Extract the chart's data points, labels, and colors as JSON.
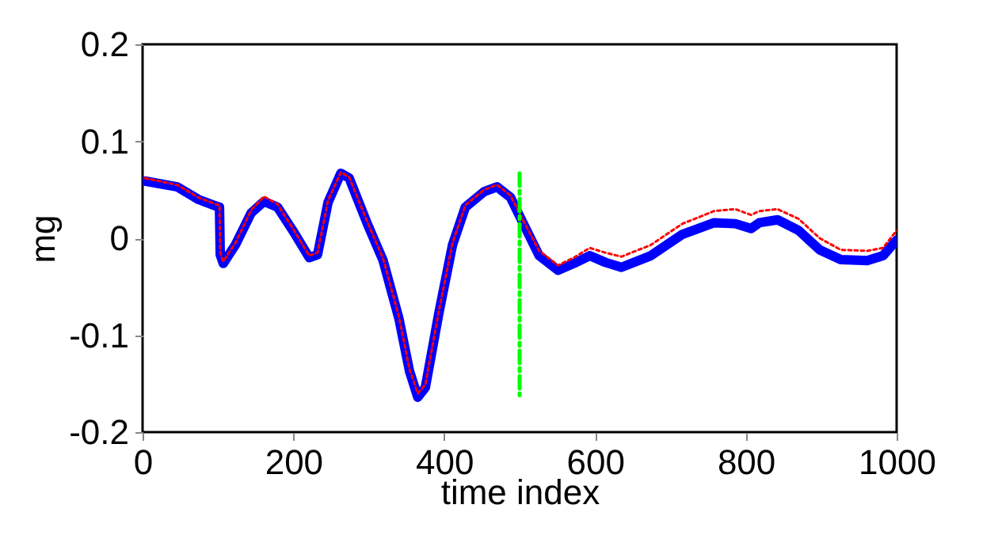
{
  "chart_data": {
    "type": "line",
    "xlabel": "time index",
    "ylabel": "mg",
    "xlim": [
      0,
      1000
    ],
    "xticks": [
      0,
      200,
      400,
      600,
      800,
      1000
    ],
    "ylim": [
      -0.2,
      0.2
    ],
    "yticks": [
      -0.2,
      -0.1,
      0,
      0.1,
      0.2
    ],
    "grid": false,
    "series": [
      {
        "color": "#0000ff",
        "line_style": "solid",
        "x": [
          3,
          46,
          74,
          98,
          102,
          103,
          107,
          123,
          144,
          161,
          179,
          200,
          221,
          232,
          246,
          263,
          274,
          298,
          319,
          340,
          354,
          365,
          375,
          393,
          411,
          428,
          453,
          470,
          488,
          505,
          526,
          551,
          572,
          593,
          614,
          635,
          674,
          716,
          758,
          786,
          807,
          818,
          842,
          870,
          898,
          926,
          961,
          982,
          1000
        ],
        "values": [
          0.059,
          0.053,
          0.04,
          0.033,
          0.032,
          -0.017,
          -0.026,
          -0.007,
          0.026,
          0.038,
          0.032,
          0.007,
          -0.02,
          -0.017,
          0.037,
          0.067,
          0.062,
          0.015,
          -0.023,
          -0.083,
          -0.137,
          -0.164,
          -0.154,
          -0.077,
          -0.007,
          0.032,
          0.048,
          0.053,
          0.042,
          0.015,
          -0.018,
          -0.033,
          -0.026,
          -0.018,
          -0.025,
          -0.03,
          -0.018,
          0.004,
          0.016,
          0.015,
          0.01,
          0.016,
          0.019,
          0.008,
          -0.012,
          -0.022,
          -0.023,
          -0.018,
          -0.002
        ]
      },
      {
        "color": "#ff0000",
        "line_style": "dotted",
        "x": [
          3,
          46,
          74,
          98,
          102,
          103,
          107,
          123,
          144,
          161,
          179,
          200,
          221,
          232,
          246,
          263,
          274,
          298,
          319,
          340,
          354,
          365,
          375,
          393,
          411,
          428,
          453,
          470,
          488,
          505,
          526,
          551,
          572,
          593,
          614,
          635,
          674,
          716,
          758,
          786,
          807,
          818,
          842,
          870,
          898,
          926,
          961,
          982,
          1000
        ],
        "values": [
          0.062,
          0.055,
          0.042,
          0.035,
          0.034,
          -0.015,
          -0.024,
          -0.005,
          0.029,
          0.043,
          0.035,
          0.009,
          -0.018,
          -0.015,
          0.039,
          0.068,
          0.063,
          0.017,
          -0.021,
          -0.081,
          -0.135,
          -0.16,
          -0.151,
          -0.075,
          -0.005,
          0.034,
          0.05,
          0.055,
          0.044,
          0.018,
          -0.013,
          -0.028,
          -0.02,
          -0.01,
          -0.015,
          -0.019,
          -0.007,
          0.015,
          0.028,
          0.03,
          0.024,
          0.028,
          0.03,
          0.02,
          0.0,
          -0.012,
          -0.013,
          -0.01,
          0.008
        ]
      },
      {
        "color": "#00ff00",
        "line_style": "dashed",
        "x": [
          500,
          500
        ],
        "values": [
          0.067,
          -0.162
        ]
      }
    ]
  }
}
